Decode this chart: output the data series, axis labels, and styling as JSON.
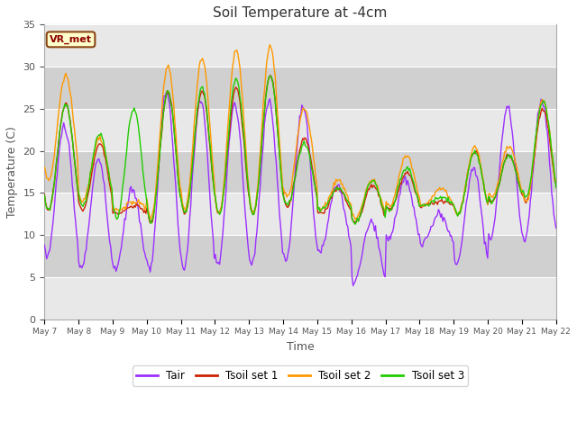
{
  "title": "Soil Temperature at -4cm",
  "xlabel": "Time",
  "ylabel": "Temperature (C)",
  "ylim": [
    0,
    35
  ],
  "yticks": [
    0,
    5,
    10,
    15,
    20,
    25,
    30,
    35
  ],
  "outer_bg": "#ffffff",
  "plot_bg_color": "#e8e8e8",
  "band_color": "#d0d0d0",
  "line_colors": {
    "Tair": "#9b30ff",
    "Tsoil set 1": "#cc2200",
    "Tsoil set 2": "#ff9900",
    "Tsoil set 3": "#22cc00"
  },
  "annotation_text": "VR_met",
  "annotation_bg": "#ffffcc",
  "annotation_border": "#8b4513",
  "annotation_text_color": "#8b0000",
  "n_points": 480,
  "x_start": 7,
  "x_end": 22,
  "xtick_labels": [
    "May 7",
    "May 8",
    "May 9",
    "May 10",
    "May 11",
    "May 12",
    "May 13",
    "May 14",
    "May 15",
    "May 16",
    "May 17",
    "May 18",
    "May 19",
    "May 20",
    "May 21",
    "May 22"
  ],
  "xtick_positions": [
    7,
    8,
    9,
    10,
    11,
    12,
    13,
    14,
    15,
    16,
    17,
    18,
    19,
    20,
    21,
    22
  ]
}
